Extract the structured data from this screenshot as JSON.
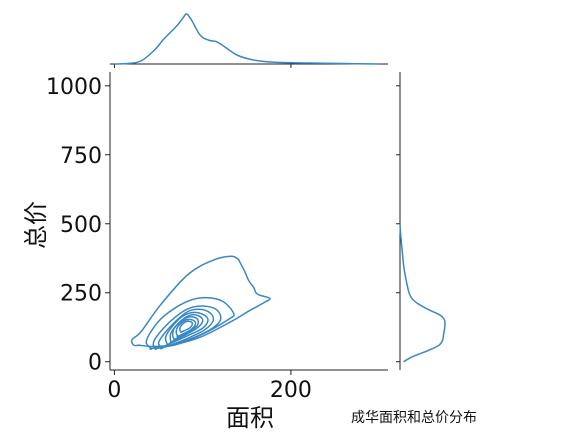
{
  "chart_data": {
    "type": "kde_joint_plot",
    "caption": "成华面积和总价分布",
    "xlabel": "面积",
    "ylabel": "总价",
    "xlim": [
      -5,
      310
    ],
    "ylim": [
      -30,
      1050
    ],
    "x_ticks": [
      0,
      200
    ],
    "y_ticks": [
      0,
      250,
      500,
      750,
      1000
    ],
    "grid": false,
    "color": "#3a87c4",
    "marginal_x_density": {
      "x": [
        0,
        15,
        30,
        45,
        55,
        65,
        72,
        78,
        82,
        88,
        95,
        100,
        108,
        115,
        122,
        130,
        140,
        155,
        170,
        190,
        220,
        260,
        300
      ],
      "density": [
        0.0,
        0.01,
        0.06,
        0.27,
        0.48,
        0.66,
        0.79,
        0.93,
        1.0,
        0.86,
        0.63,
        0.53,
        0.47,
        0.45,
        0.38,
        0.28,
        0.17,
        0.09,
        0.05,
        0.03,
        0.02,
        0.01,
        0.0
      ]
    },
    "marginal_y_density": {
      "y": [
        0,
        20,
        40,
        60,
        80,
        100,
        120,
        140,
        155,
        170,
        190,
        210,
        230,
        250,
        300,
        350,
        400,
        450,
        500
      ],
      "density": [
        0.08,
        0.3,
        0.62,
        0.87,
        0.95,
        0.97,
        0.99,
        1.0,
        0.98,
        0.88,
        0.62,
        0.4,
        0.26,
        0.2,
        0.13,
        0.08,
        0.05,
        0.02,
        0.0
      ]
    },
    "contours": [
      [
        [
          28,
          60
        ],
        [
          45,
          55
        ],
        [
          70,
          64
        ],
        [
          98,
          90
        ],
        [
          132,
          145
        ],
        [
          153,
          185
        ],
        [
          170,
          215
        ],
        [
          176,
          230
        ],
        [
          162,
          245
        ],
        [
          158,
          268
        ],
        [
          152,
          295
        ],
        [
          148,
          325
        ],
        [
          142,
          362
        ],
        [
          140,
          372
        ],
        [
          132,
          382
        ],
        [
          112,
          368
        ],
        [
          84,
          318
        ],
        [
          52,
          205
        ],
        [
          30,
          108
        ],
        [
          20,
          80
        ],
        [
          22,
          60
        ],
        [
          28,
          60
        ]
      ],
      [
        [
          42,
          48
        ],
        [
          70,
          62
        ],
        [
          100,
          100
        ],
        [
          130,
          155
        ],
        [
          135,
          175
        ],
        [
          122,
          220
        ],
        [
          100,
          232
        ],
        [
          80,
          215
        ],
        [
          56,
          165
        ],
        [
          42,
          112
        ],
        [
          36,
          70
        ],
        [
          42,
          48
        ]
      ],
      [
        [
          48,
          48
        ],
        [
          75,
          70
        ],
        [
          105,
          110
        ],
        [
          120,
          150
        ],
        [
          116,
          188
        ],
        [
          100,
          202
        ],
        [
          82,
          190
        ],
        [
          64,
          148
        ],
        [
          48,
          92
        ],
        [
          44,
          62
        ],
        [
          48,
          48
        ]
      ],
      [
        [
          54,
          50
        ],
        [
          78,
          78
        ],
        [
          102,
          115
        ],
        [
          112,
          150
        ],
        [
          108,
          178
        ],
        [
          96,
          190
        ],
        [
          82,
          180
        ],
        [
          68,
          142
        ],
        [
          56,
          100
        ],
        [
          50,
          68
        ],
        [
          54,
          50
        ]
      ],
      [
        [
          60,
          62
        ],
        [
          80,
          90
        ],
        [
          100,
          122
        ],
        [
          106,
          152
        ],
        [
          100,
          172
        ],
        [
          88,
          178
        ],
        [
          76,
          162
        ],
        [
          64,
          122
        ],
        [
          58,
          88
        ],
        [
          60,
          62
        ]
      ],
      [
        [
          64,
          70
        ],
        [
          82,
          100
        ],
        [
          96,
          128
        ],
        [
          100,
          152
        ],
        [
          94,
          168
        ],
        [
          85,
          168
        ],
        [
          74,
          144
        ],
        [
          64,
          104
        ],
        [
          64,
          70
        ]
      ],
      [
        [
          68,
          80
        ],
        [
          84,
          108
        ],
        [
          94,
          132
        ],
        [
          94,
          155
        ],
        [
          86,
          163
        ],
        [
          78,
          152
        ],
        [
          68,
          122
        ],
        [
          66,
          96
        ],
        [
          68,
          80
        ]
      ],
      [
        [
          72,
          92
        ],
        [
          86,
          115
        ],
        [
          92,
          138
        ],
        [
          88,
          152
        ],
        [
          80,
          150
        ],
        [
          72,
          128
        ],
        [
          70,
          106
        ],
        [
          72,
          92
        ]
      ],
      [
        [
          76,
          108
        ],
        [
          86,
          124
        ],
        [
          88,
          142
        ],
        [
          82,
          146
        ],
        [
          76,
          132
        ],
        [
          74,
          116
        ],
        [
          76,
          108
        ]
      ]
    ]
  }
}
